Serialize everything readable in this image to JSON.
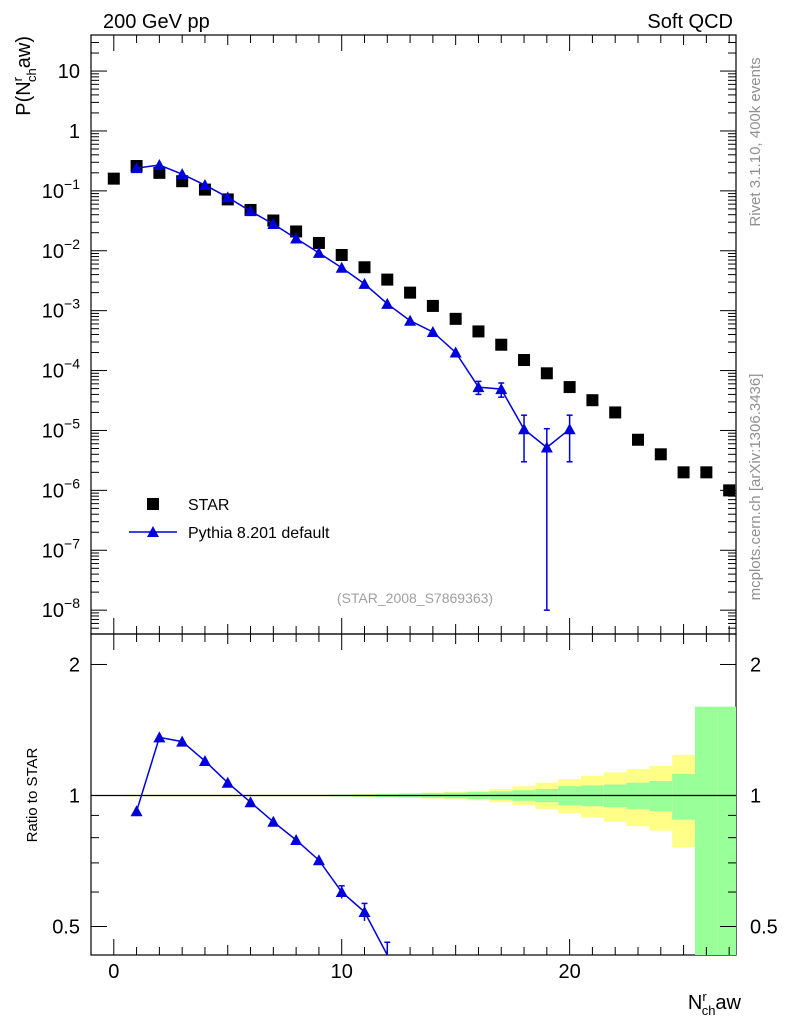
{
  "header": {
    "left": "200 GeV pp",
    "right": "Soft QCD"
  },
  "side_text": {
    "rivet": "Rivet 3.1.10,  400k events",
    "mcplots": "mcplots.cern.ch [arXiv:1306.3436]"
  },
  "analysis_tag": "(STAR_2008_S7869363)",
  "colors": {
    "data": "#000000",
    "mc": "#0000dd",
    "band_inner": "#99ff99",
    "band_outer": "#ffff88"
  },
  "chart_data": [
    {
      "type": "scatter",
      "panel": "main",
      "ylabel": {
        "main": "P(N",
        "sup": "r",
        "sub": "ch",
        "tail": "aw)"
      },
      "yscale": "log",
      "ylim": [
        4e-09,
        40
      ],
      "xlim": [
        -1,
        27.3
      ],
      "y_tick_labels": [
        {
          "m": "10",
          "e": ""
        },
        {
          "m": "1",
          "e": ""
        },
        {
          "m": "10",
          "e": "−1"
        },
        {
          "m": "10",
          "e": "−2"
        },
        {
          "m": "10",
          "e": "−3"
        },
        {
          "m": "10",
          "e": "−4"
        },
        {
          "m": "10",
          "e": "−5"
        },
        {
          "m": "10",
          "e": "−6"
        },
        {
          "m": "10",
          "e": "−7"
        },
        {
          "m": "10",
          "e": "−8"
        }
      ],
      "legend": {
        "placement": "bottom-left",
        "entries": [
          "STAR",
          "Pythia 8.201 default"
        ]
      },
      "series": [
        {
          "name": "STAR",
          "marker": "square",
          "x": [
            0,
            1,
            2,
            3,
            4,
            5,
            6,
            7,
            8,
            9,
            10,
            11,
            12,
            13,
            14,
            15,
            16,
            17,
            18,
            19,
            20,
            21,
            22,
            23,
            24,
            25,
            26,
            27
          ],
          "y": [
            0.16,
            0.26,
            0.2,
            0.145,
            0.105,
            0.072,
            0.048,
            0.032,
            0.021,
            0.0135,
            0.0085,
            0.0053,
            0.0033,
            0.002,
            0.0012,
            0.00073,
            0.00045,
            0.00027,
            0.00015,
            9e-05,
            5.3e-05,
            3.2e-05,
            2e-05,
            7e-06,
            4e-06,
            2e-06,
            2e-06,
            1e-06
          ]
        },
        {
          "name": "Pythia 8.201 default",
          "marker": "triangle",
          "x": [
            1,
            2,
            3,
            4,
            5,
            6,
            7,
            8,
            9,
            10,
            11,
            12,
            13,
            14,
            15,
            16,
            17,
            18,
            19,
            20
          ],
          "y": [
            0.24,
            0.27,
            0.19,
            0.125,
            0.078,
            0.046,
            0.028,
            0.016,
            0.0092,
            0.0052,
            0.0028,
            0.0013,
            0.00068,
            0.00044,
            0.0002,
            5.3e-05,
            4.9e-05,
            1.05e-05,
            5.2e-06,
            1.05e-05
          ],
          "err_lo": [
            0,
            0,
            0,
            0,
            0,
            0,
            0,
            0,
            0,
            0,
            0,
            0,
            0,
            0,
            0,
            1.3e-05,
            1.3e-05,
            7.5e-06,
            5.19e-06,
            7.5e-06
          ],
          "err_hi": [
            0,
            0,
            0,
            0,
            0,
            0,
            0,
            0,
            0,
            0,
            0,
            0,
            0,
            0,
            0,
            1.3e-05,
            1.3e-05,
            7.5e-06,
            5.5e-06,
            7.5e-06
          ]
        }
      ]
    },
    {
      "type": "line",
      "panel": "ratio",
      "ylabel": "Ratio to STAR",
      "xlabel": {
        "main": "N",
        "sup": "r",
        "sub": "ch",
        "tail": "aw"
      },
      "yscale": "log",
      "ylim": [
        0.43,
        2.35
      ],
      "xlim": [
        -1,
        27.3
      ],
      "y_tick_labels": [
        "2",
        "1",
        "0.5"
      ],
      "x_tick_labels": [
        "0",
        "10",
        "20"
      ],
      "reference_line": 1,
      "bands": {
        "x_edges": [
          0.5,
          1.5,
          2.5,
          3.5,
          4.5,
          5.5,
          6.5,
          7.5,
          8.5,
          9.5,
          10.5,
          11.5,
          12.5,
          13.5,
          14.5,
          15.5,
          16.5,
          17.5,
          18.5,
          19.5,
          20.5,
          21.5,
          22.5,
          23.5,
          24.5,
          25.5,
          26.5,
          27.5
        ],
        "inner": [
          0.003,
          0.003,
          0.003,
          0.003,
          0.003,
          0.003,
          0.003,
          0.003,
          0.003,
          0.005,
          0.006,
          0.008,
          0.01,
          0.012,
          0.015,
          0.018,
          0.022,
          0.028,
          0.035,
          0.05,
          0.055,
          0.06,
          0.07,
          0.08,
          0.12,
          0.6,
          0.6,
          1.0
        ],
        "outer": [
          0.004,
          0.004,
          0.004,
          0.004,
          0.004,
          0.004,
          0.004,
          0.004,
          0.004,
          0.006,
          0.008,
          0.01,
          0.013,
          0.016,
          0.02,
          0.025,
          0.035,
          0.05,
          0.07,
          0.09,
          0.11,
          0.13,
          0.15,
          0.17,
          0.24,
          0.35,
          0.5,
          1.5
        ]
      },
      "series": [
        {
          "name": "Pythia 8.201 default",
          "x": [
            1,
            2,
            3,
            4,
            5,
            6,
            7,
            8,
            9,
            10,
            11,
            12
          ],
          "y": [
            0.92,
            1.36,
            1.33,
            1.2,
            1.07,
            0.965,
            0.87,
            0.79,
            0.71,
            0.6,
            0.54,
            0.42
          ],
          "err": [
            0,
            0,
            0,
            0,
            0,
            0,
            0,
            0,
            0,
            0.02,
            0.025,
            0.04
          ]
        }
      ]
    }
  ]
}
